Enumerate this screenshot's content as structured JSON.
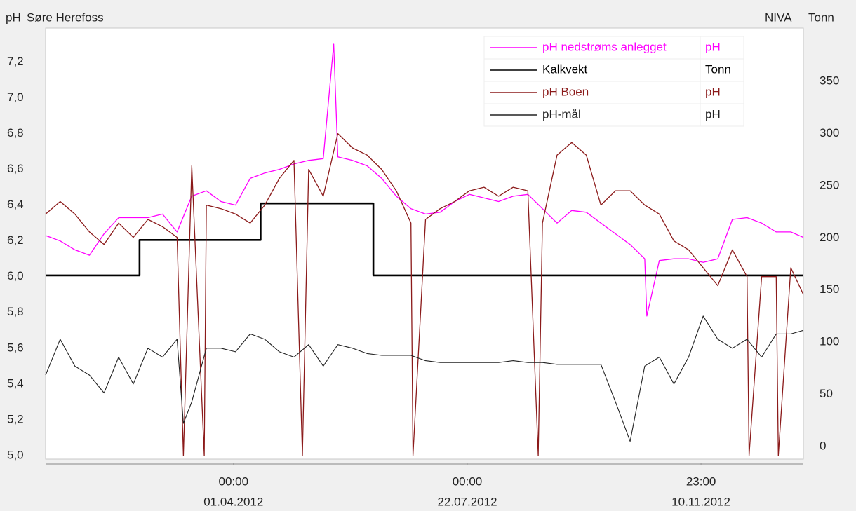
{
  "chart_data": {
    "type": "line",
    "title": "Søre Herefoss",
    "y_label": "pH",
    "y2_label": "Tonn",
    "source": "NIVA",
    "legend": "upper right",
    "xlim": [
      "2012-01-02",
      "2012-12-30"
    ],
    "xticks": [
      {
        "value": "2012-04-01T00:00",
        "label": [
          "00:00",
          "01.04.2012"
        ]
      },
      {
        "value": "2012-07-22T00:00",
        "label": [
          "00:00",
          "22.07.2012"
        ]
      },
      {
        "value": "2012-11-10T23:00",
        "label": [
          "23:00",
          "10.11.2012"
        ]
      }
    ],
    "ylim": [
      4.98,
      7.39
    ],
    "yticks": [
      {
        "value": 5.0,
        "label": "5,0"
      },
      {
        "value": 5.2,
        "label": "5,2"
      },
      {
        "value": 5.4,
        "label": "5,4"
      },
      {
        "value": 5.6,
        "label": "5,6"
      },
      {
        "value": 5.8,
        "label": "5,8"
      },
      {
        "value": 6.0,
        "label": "6,0"
      },
      {
        "value": 6.2,
        "label": "6,2"
      },
      {
        "value": 6.4,
        "label": "6,4"
      },
      {
        "value": 6.6,
        "label": "6,6"
      },
      {
        "value": 6.8,
        "label": "6,8"
      },
      {
        "value": 7.0,
        "label": "7,0"
      },
      {
        "value": 7.2,
        "label": "7,2"
      }
    ],
    "y2lim": [
      -12,
      401
    ],
    "y2ticks": [
      0,
      50,
      100,
      150,
      200,
      250,
      300,
      350
    ],
    "series": [
      {
        "name": "pH nedstrøms anlegget",
        "unit": "pH",
        "color": "#ff00ff",
        "width": 1.3,
        "axis": "y",
        "x": [
          "2012-01-02",
          "2012-01-09",
          "2012-01-16",
          "2012-01-23",
          "2012-01-30",
          "2012-02-06",
          "2012-02-13",
          "2012-02-20",
          "2012-02-27",
          "2012-03-05",
          "2012-03-12",
          "2012-03-19",
          "2012-03-26",
          "2012-04-02",
          "2012-04-09",
          "2012-04-16",
          "2012-04-23",
          "2012-04-30",
          "2012-05-07",
          "2012-05-14",
          "2012-05-19",
          "2012-05-21",
          "2012-05-28",
          "2012-06-04",
          "2012-06-11",
          "2012-06-18",
          "2012-06-25",
          "2012-07-02",
          "2012-07-09",
          "2012-07-16",
          "2012-07-23",
          "2012-07-30",
          "2012-08-06",
          "2012-08-13",
          "2012-08-20",
          "2012-08-27",
          "2012-09-03",
          "2012-09-10",
          "2012-09-17",
          "2012-09-24",
          "2012-10-01",
          "2012-10-08",
          "2012-10-15",
          "2012-10-16",
          "2012-10-22",
          "2012-10-29",
          "2012-11-05",
          "2012-11-12",
          "2012-11-19",
          "2012-11-26",
          "2012-12-03",
          "2012-12-10",
          "2012-12-17",
          "2012-12-24",
          "2012-12-30"
        ],
        "values": [
          6.23,
          6.2,
          6.15,
          6.12,
          6.24,
          6.33,
          6.33,
          6.33,
          6.35,
          6.25,
          6.45,
          6.48,
          6.42,
          6.4,
          6.55,
          6.58,
          6.6,
          6.63,
          6.65,
          6.66,
          7.3,
          6.67,
          6.65,
          6.62,
          6.55,
          6.45,
          6.38,
          6.35,
          6.36,
          6.42,
          6.46,
          6.44,
          6.42,
          6.45,
          6.46,
          6.38,
          6.3,
          6.37,
          6.36,
          6.3,
          6.24,
          6.18,
          6.1,
          5.78,
          6.09,
          6.1,
          6.1,
          6.08,
          6.1,
          6.32,
          6.33,
          6.3,
          6.25,
          6.25,
          6.22
        ]
      },
      {
        "name": "Kalkvekt",
        "unit": "Tonn",
        "color": "#000000",
        "width": 2.6,
        "axis": "y2",
        "x": [
          "2012-01-02",
          "2012-02-16",
          "2012-02-16",
          "2012-04-14",
          "2012-04-14",
          "2012-06-07",
          "2012-06-07",
          "2012-12-30"
        ],
        "values": [
          164,
          164,
          198,
          198,
          233,
          233,
          164,
          164
        ]
      },
      {
        "name": "pH Boen",
        "unit": "pH",
        "color": "#8b1a1a",
        "width": 1.3,
        "axis": "y",
        "x": [
          "2012-01-02",
          "2012-01-09",
          "2012-01-16",
          "2012-01-23",
          "2012-01-30",
          "2012-02-06",
          "2012-02-13",
          "2012-02-20",
          "2012-02-27",
          "2012-03-05",
          "2012-03-08",
          "2012-03-12",
          "2012-03-18",
          "2012-03-19",
          "2012-03-26",
          "2012-04-02",
          "2012-04-09",
          "2012-04-16",
          "2012-04-23",
          "2012-04-30",
          "2012-05-04",
          "2012-05-07",
          "2012-05-14",
          "2012-05-21",
          "2012-05-28",
          "2012-06-04",
          "2012-06-11",
          "2012-06-18",
          "2012-06-25",
          "2012-06-26",
          "2012-07-02",
          "2012-07-09",
          "2012-07-16",
          "2012-07-23",
          "2012-07-30",
          "2012-08-06",
          "2012-08-13",
          "2012-08-20",
          "2012-08-25",
          "2012-08-27",
          "2012-09-03",
          "2012-09-10",
          "2012-09-17",
          "2012-09-24",
          "2012-10-01",
          "2012-10-08",
          "2012-10-15",
          "2012-10-22",
          "2012-10-29",
          "2012-11-05",
          "2012-11-12",
          "2012-11-19",
          "2012-11-26",
          "2012-12-03",
          "2012-12-04",
          "2012-12-10",
          "2012-12-17",
          "2012-12-18",
          "2012-12-24",
          "2012-12-30"
        ],
        "values": [
          6.35,
          6.42,
          6.35,
          6.25,
          6.18,
          6.3,
          6.22,
          6.32,
          6.28,
          6.22,
          5.0,
          6.62,
          5.0,
          6.4,
          6.38,
          6.35,
          6.3,
          6.4,
          6.55,
          6.65,
          5.0,
          6.6,
          6.45,
          6.8,
          6.72,
          6.68,
          6.6,
          6.48,
          6.3,
          5.0,
          6.32,
          6.38,
          6.42,
          6.48,
          6.5,
          6.45,
          6.5,
          6.48,
          5.0,
          6.3,
          6.68,
          6.75,
          6.68,
          6.4,
          6.48,
          6.48,
          6.4,
          6.35,
          6.2,
          6.15,
          6.05,
          5.95,
          6.15,
          6.0,
          5.0,
          6.0,
          6.0,
          5.0,
          6.05,
          5.9
        ]
      },
      {
        "name": "pH-mål",
        "unit": "pH",
        "color": "#222222",
        "width": 1.1,
        "axis": "y",
        "x": [
          "2012-01-02",
          "2012-01-09",
          "2012-01-16",
          "2012-01-23",
          "2012-01-30",
          "2012-02-06",
          "2012-02-13",
          "2012-02-20",
          "2012-02-27",
          "2012-03-05",
          "2012-03-08",
          "2012-03-12",
          "2012-03-19",
          "2012-03-26",
          "2012-04-02",
          "2012-04-09",
          "2012-04-16",
          "2012-04-23",
          "2012-04-30",
          "2012-05-07",
          "2012-05-14",
          "2012-05-21",
          "2012-05-28",
          "2012-06-04",
          "2012-06-11",
          "2012-06-18",
          "2012-06-25",
          "2012-07-02",
          "2012-07-09",
          "2012-07-16",
          "2012-07-23",
          "2012-07-30",
          "2012-08-06",
          "2012-08-13",
          "2012-08-20",
          "2012-08-27",
          "2012-09-03",
          "2012-09-10",
          "2012-09-17",
          "2012-09-24",
          "2012-10-01",
          "2012-10-08",
          "2012-10-15",
          "2012-10-22",
          "2012-10-29",
          "2012-11-05",
          "2012-11-12",
          "2012-11-19",
          "2012-11-26",
          "2012-12-03",
          "2012-12-10",
          "2012-12-17",
          "2012-12-24",
          "2012-12-30"
        ],
        "values": [
          5.45,
          5.65,
          5.5,
          5.45,
          5.35,
          5.55,
          5.4,
          5.6,
          5.55,
          5.65,
          5.18,
          5.3,
          5.6,
          5.6,
          5.58,
          5.68,
          5.65,
          5.58,
          5.55,
          5.62,
          5.5,
          5.62,
          5.6,
          5.57,
          5.56,
          5.56,
          5.56,
          5.53,
          5.52,
          5.52,
          5.52,
          5.52,
          5.52,
          5.53,
          5.52,
          5.52,
          5.51,
          5.51,
          5.51,
          5.51,
          5.3,
          5.08,
          5.5,
          5.55,
          5.4,
          5.55,
          5.78,
          5.65,
          5.6,
          5.65,
          5.55,
          5.68,
          5.68,
          5.7
        ]
      }
    ]
  }
}
